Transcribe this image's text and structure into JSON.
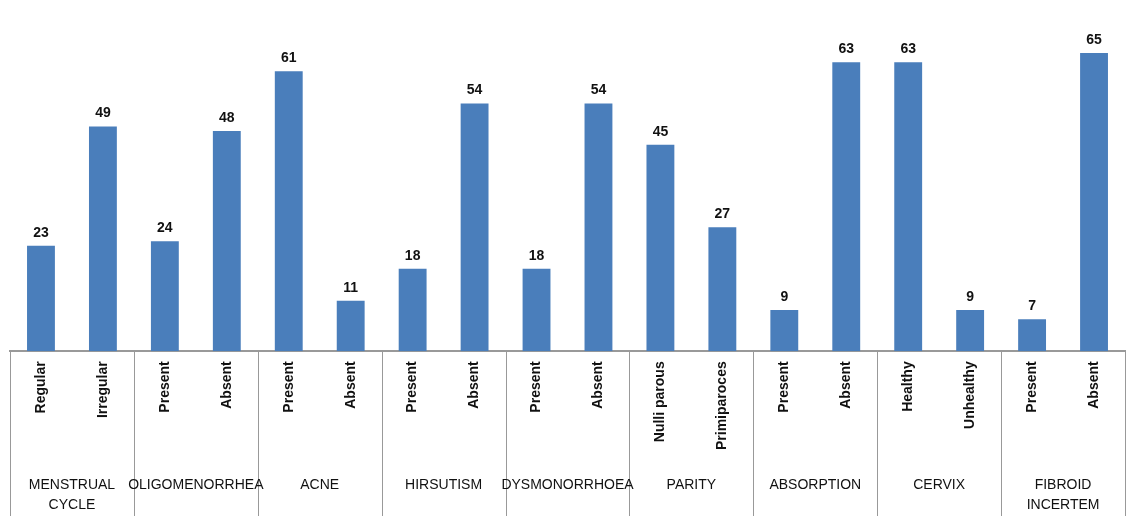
{
  "chart_data": {
    "type": "bar",
    "categories": [
      "Regular",
      "Irregular",
      "Present",
      "Absent",
      "Present",
      "Absent",
      "Present",
      "Absent",
      "Present",
      "Absent",
      "Nulli parous",
      "Primiparoces",
      "Present",
      "Absent",
      "Healthy",
      "Unhealthy",
      "Present",
      "Absent"
    ],
    "values": [
      23,
      49,
      24,
      48,
      61,
      11,
      18,
      54,
      18,
      54,
      45,
      27,
      9,
      63,
      63,
      9,
      7,
      65
    ],
    "color": "#4a7ebb",
    "data_labels": true,
    "annotations": [
      "MENSTRUAL CYCLE",
      "OLIGOMENORRHEA",
      "ACNE",
      "HIRSUTISM",
      "DYSMONORRHOEA",
      "PARITY",
      "ABSORPTION",
      "CERVIX",
      "FIBROID INCERTEM"
    ],
    "grid": false,
    "legend": false
  }
}
